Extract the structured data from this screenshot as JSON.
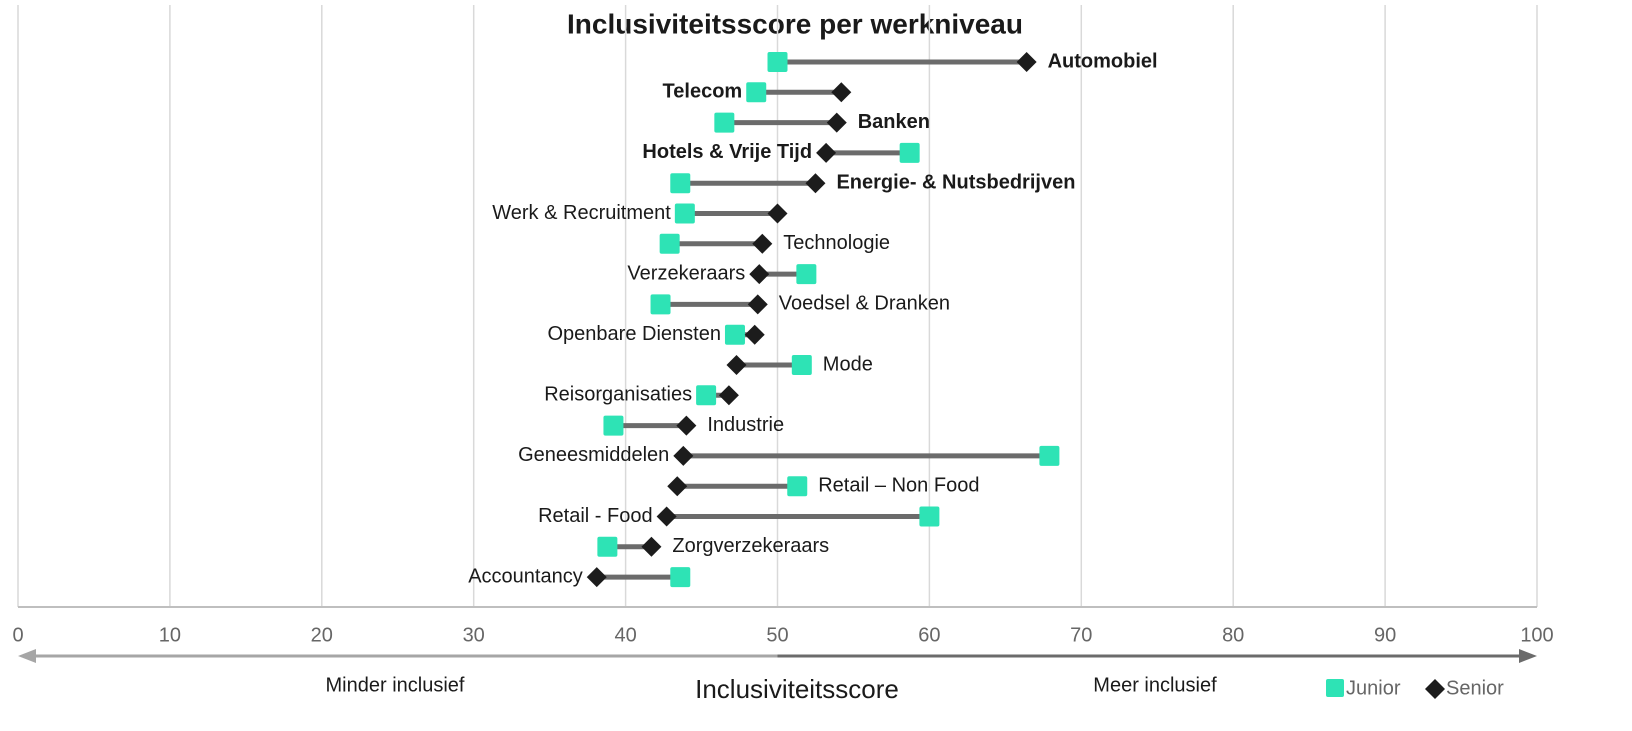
{
  "chart_data": {
    "type": "dumbbell",
    "title": "Inclusiviteitsscore per werkniveau",
    "x_label": "Inclusiviteitsscore",
    "annotations": [
      "Minder inclusief",
      "Meer inclusief"
    ],
    "categories": [
      "Automobiel",
      "Telecom",
      "Banken",
      "Hotels & Vrije Tijd",
      "Energie- & Nutsbedrijven",
      "Werk & Recruitment",
      "Technologie",
      "Verzekeraars",
      "Voedsel & Dranken",
      "Openbare Diensten",
      "Mode",
      "Reisorganisaties",
      "Industrie",
      "Geneesmiddelen",
      "Retail – Non Food",
      "Retail - Food",
      "Zorgverzekeraars",
      "Accountancy"
    ],
    "series": [
      {
        "name": "Junior",
        "color": "#2ee3b5",
        "values": [
          50.0,
          48.6,
          46.5,
          58.7,
          43.6,
          43.9,
          42.9,
          51.9,
          42.3,
          47.2,
          51.6,
          45.3,
          39.2,
          67.9,
          51.3,
          60.0,
          38.8,
          43.6
        ]
      },
      {
        "name": "Senior",
        "color": "#1c1c1c",
        "values": [
          66.4,
          54.2,
          53.9,
          53.2,
          52.5,
          50.0,
          49.0,
          48.8,
          48.7,
          48.5,
          47.3,
          46.8,
          44.0,
          43.8,
          43.4,
          42.7,
          41.7,
          38.1
        ]
      }
    ],
    "line_color": "#6b6b6b",
    "xlim": [
      0,
      100
    ],
    "xticks": [
      0,
      10,
      20,
      30,
      40,
      50,
      60,
      70,
      80,
      90,
      100
    ],
    "grid": true
  }
}
